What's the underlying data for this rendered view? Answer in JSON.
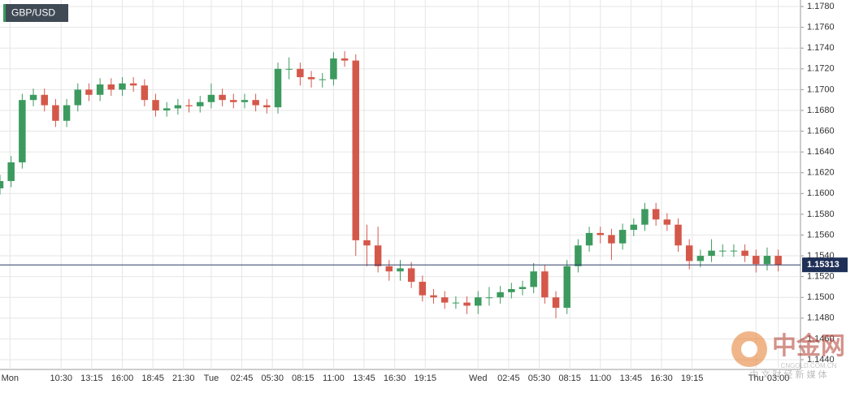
{
  "chart_data": {
    "type": "candlestick",
    "title": "GBP/USD",
    "xlim": [
      5,
      77
    ],
    "xticks": [
      {
        "value": 5.9,
        "label": "Mon"
      },
      {
        "value": 10.5,
        "label": "10:30"
      },
      {
        "value": 13.25,
        "label": "13:15"
      },
      {
        "value": 16,
        "label": "16:00"
      },
      {
        "value": 18.75,
        "label": "18:45"
      },
      {
        "value": 21.5,
        "label": "21:30"
      },
      {
        "value": 24,
        "label": "Tue"
      },
      {
        "value": 26.75,
        "label": "02:45"
      },
      {
        "value": 29.5,
        "label": "05:30"
      },
      {
        "value": 32.25,
        "label": "08:15"
      },
      {
        "value": 35,
        "label": "11:00"
      },
      {
        "value": 37.75,
        "label": "13:45"
      },
      {
        "value": 40.5,
        "label": "16:30"
      },
      {
        "value": 43.25,
        "label": "19:15"
      },
      {
        "value": 48,
        "label": "Wed"
      },
      {
        "value": 50.75,
        "label": "02:45"
      },
      {
        "value": 53.5,
        "label": "05:30"
      },
      {
        "value": 56.25,
        "label": "08:15"
      },
      {
        "value": 59,
        "label": "11:00"
      },
      {
        "value": 61.75,
        "label": "13:45"
      },
      {
        "value": 64.5,
        "label": "16:30"
      },
      {
        "value": 67.25,
        "label": "19:15"
      },
      {
        "value": 73,
        "label": "Thu"
      },
      {
        "value": 75,
        "label": "03:00"
      }
    ],
    "ylim": [
      1.14306,
      1.17863
    ],
    "yticks": [
      {
        "value": 1.144,
        "label": "1.1440"
      },
      {
        "value": 1.146,
        "label": "1.1460"
      },
      {
        "value": 1.148,
        "label": "1.1480"
      },
      {
        "value": 1.15,
        "label": "1.1500"
      },
      {
        "value": 1.152,
        "label": "1.1520"
      },
      {
        "value": 1.154,
        "label": "1.1540"
      },
      {
        "value": 1.156,
        "label": "1.1560"
      },
      {
        "value": 1.158,
        "label": "1.1580"
      },
      {
        "value": 1.16,
        "label": "1.1600"
      },
      {
        "value": 1.162,
        "label": "1.1620"
      },
      {
        "value": 1.164,
        "label": "1.1640"
      },
      {
        "value": 1.166,
        "label": "1.1660"
      },
      {
        "value": 1.168,
        "label": "1.1680"
      },
      {
        "value": 1.17,
        "label": "1.1700"
      },
      {
        "value": 1.172,
        "label": "1.1720"
      },
      {
        "value": 1.174,
        "label": "1.1740"
      },
      {
        "value": 1.176,
        "label": "1.1760"
      },
      {
        "value": 1.178,
        "label": "1.1780"
      }
    ],
    "grid": true,
    "up_color": "#3c9a5f",
    "down_color": "#d4584a",
    "last_price": 1.15313,
    "x": [
      5,
      6,
      7,
      8,
      9,
      10,
      11,
      12,
      13,
      14,
      15,
      16,
      17,
      18,
      19,
      20,
      21,
      22,
      23,
      24,
      25,
      26,
      27,
      28,
      29,
      30,
      31,
      32,
      33,
      34,
      35,
      36,
      37,
      38,
      39,
      40,
      41,
      42,
      43,
      44,
      45,
      46,
      47,
      48,
      49,
      50,
      51,
      52,
      53,
      54,
      55,
      56,
      57,
      58,
      59,
      60,
      61,
      62,
      63,
      64,
      65,
      66,
      67,
      68,
      69,
      70,
      71,
      72,
      73,
      74,
      75
    ],
    "open": [
      1.1605,
      1.1612,
      1.163,
      1.169,
      1.1695,
      1.1685,
      1.167,
      1.1685,
      1.17,
      1.1695,
      1.1705,
      1.17,
      1.1706,
      1.1704,
      1.169,
      1.168,
      1.1682,
      1.1685,
      1.1684,
      1.1688,
      1.1695,
      1.169,
      1.1688,
      1.169,
      1.1685,
      1.1683,
      1.172,
      1.172,
      1.1712,
      1.171,
      1.171,
      1.173,
      1.1728,
      1.1555,
      1.155,
      1.153,
      1.1525,
      1.1528,
      1.1515,
      1.1502,
      1.15,
      1.1495,
      1.1495,
      1.1492,
      1.15,
      1.15,
      1.1505,
      1.1508,
      1.151,
      1.1525,
      1.15,
      1.149,
      1.153,
      1.155,
      1.1562,
      1.156,
      1.1552,
      1.1565,
      1.157,
      1.1585,
      1.1575,
      1.157,
      1.155,
      1.1535,
      1.154,
      1.1545,
      1.1545,
      1.1545,
      1.154,
      1.1532,
      1.154
    ],
    "high": [
      1.1618,
      1.1636,
      1.1696,
      1.1701,
      1.1701,
      1.1691,
      1.1691,
      1.1706,
      1.1706,
      1.1711,
      1.1711,
      1.1712,
      1.1712,
      1.171,
      1.1696,
      1.1688,
      1.1691,
      1.1691,
      1.1694,
      1.1706,
      1.1701,
      1.1696,
      1.1696,
      1.1696,
      1.1691,
      1.1726,
      1.1731,
      1.1726,
      1.1718,
      1.1716,
      1.1736,
      1.1737,
      1.1734,
      1.157,
      1.1568,
      1.1536,
      1.1536,
      1.1534,
      1.1521,
      1.1508,
      1.1506,
      1.1501,
      1.1501,
      1.1506,
      1.151,
      1.1511,
      1.1514,
      1.1516,
      1.1533,
      1.1531,
      1.1506,
      1.1536,
      1.1556,
      1.1568,
      1.1568,
      1.1566,
      1.1571,
      1.1576,
      1.1591,
      1.1591,
      1.1581,
      1.1576,
      1.1556,
      1.1546,
      1.1556,
      1.1551,
      1.1551,
      1.1551,
      1.1546,
      1.1548,
      1.1546
    ],
    "low": [
      1.1599,
      1.1606,
      1.1624,
      1.1684,
      1.1679,
      1.1664,
      1.1664,
      1.1679,
      1.1689,
      1.1689,
      1.1694,
      1.1694,
      1.1698,
      1.1684,
      1.1674,
      1.1674,
      1.1676,
      1.1678,
      1.1678,
      1.1682,
      1.1684,
      1.1682,
      1.1682,
      1.1679,
      1.1677,
      1.1677,
      1.171,
      1.1704,
      1.1702,
      1.1702,
      1.1704,
      1.1722,
      1.154,
      1.153,
      1.1524,
      1.1516,
      1.1516,
      1.1509,
      1.1496,
      1.1494,
      1.1489,
      1.1489,
      1.1484,
      1.1484,
      1.1492,
      1.1494,
      1.1499,
      1.1502,
      1.1504,
      1.1494,
      1.148,
      1.1484,
      1.1524,
      1.1544,
      1.1552,
      1.1536,
      1.1546,
      1.1559,
      1.1564,
      1.1569,
      1.1564,
      1.1544,
      1.1527,
      1.1529,
      1.1534,
      1.1539,
      1.1539,
      1.1534,
      1.1524,
      1.1526,
      1.1525
    ],
    "close": [
      1.1612,
      1.163,
      1.169,
      1.1695,
      1.1685,
      1.167,
      1.1685,
      1.17,
      1.1695,
      1.1705,
      1.17,
      1.1706,
      1.1704,
      1.169,
      1.168,
      1.1682,
      1.1685,
      1.1684,
      1.1688,
      1.1695,
      1.169,
      1.1688,
      1.169,
      1.1685,
      1.1683,
      1.172,
      1.172,
      1.1712,
      1.171,
      1.171,
      1.173,
      1.1728,
      1.1555,
      1.155,
      1.153,
      1.1525,
      1.1528,
      1.1515,
      1.1502,
      1.15,
      1.1495,
      1.1495,
      1.1492,
      1.15,
      1.15,
      1.1505,
      1.1508,
      1.151,
      1.1525,
      1.15,
      1.149,
      1.153,
      1.155,
      1.1562,
      1.156,
      1.1552,
      1.1565,
      1.157,
      1.1585,
      1.1575,
      1.157,
      1.155,
      1.1535,
      1.154,
      1.1545,
      1.1545,
      1.1545,
      1.154,
      1.1532,
      1.154,
      1.1531
    ]
  },
  "watermark": {
    "brand": "中金网",
    "site": "CNGOLD.COM.CN",
    "slogan": "中 文 财 经 新 媒 体"
  }
}
